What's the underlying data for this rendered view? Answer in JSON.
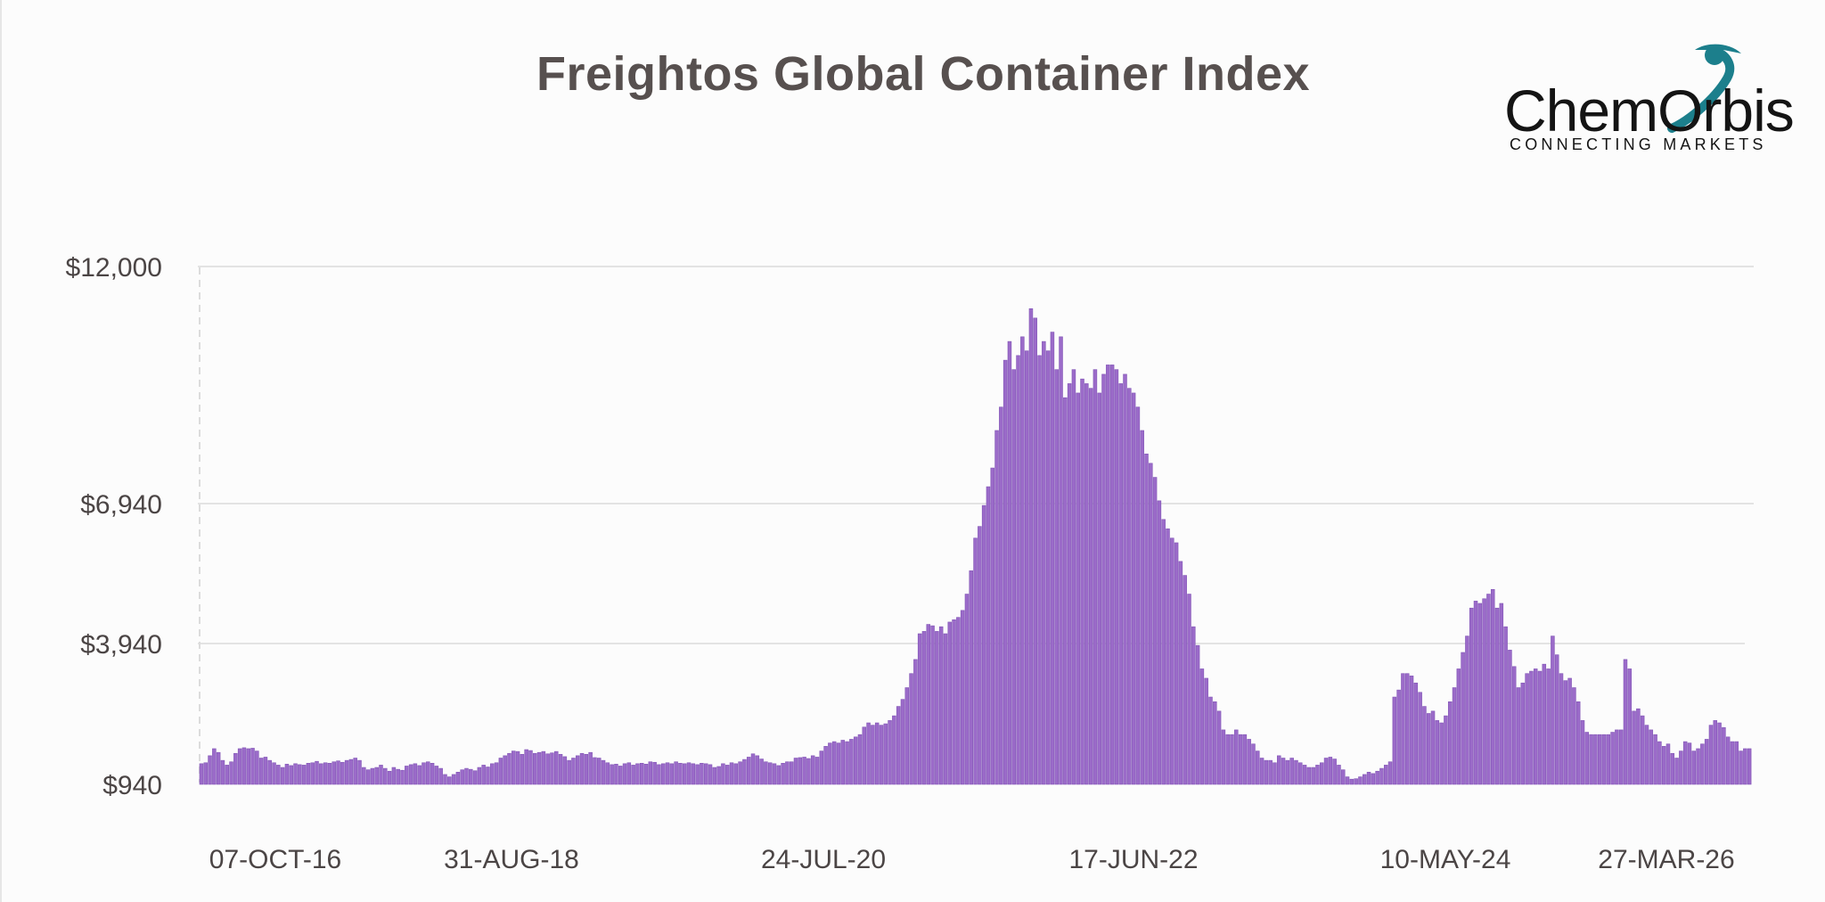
{
  "title": "Freightos Global Container Index",
  "logo": {
    "word": "ChemOrbis",
    "tagline": "CONNECTING MARKETS",
    "accent_color": "#1c7f8c",
    "text_color": "#141414"
  },
  "colors": {
    "bar": "#9b6bc9",
    "bar_edge": "#8256b6",
    "grid": "#e3e3e3",
    "text": "#4b4545"
  },
  "chart_data": {
    "type": "bar",
    "title": "Freightos Global Container Index",
    "xlabel": "",
    "ylabel": "",
    "x_start": "07-OCT-16",
    "x_end": "27-MAR-26",
    "x_tick_labels": [
      "07-OCT-16",
      "31-AUG-18",
      "24-JUL-20",
      "17-JUN-22",
      "10-MAY-24",
      "27-MAR-26"
    ],
    "y_tick_labels": [
      "$12,000",
      "$6,940",
      "$3,940",
      "$940"
    ],
    "y_ticks": [
      12000,
      6940,
      3940,
      940
    ],
    "ylim": [
      940,
      12000
    ],
    "grid": true,
    "legend": "none",
    "values": [
      1380,
      1400,
      1550,
      1700,
      1620,
      1450,
      1350,
      1420,
      1600,
      1700,
      1720,
      1700,
      1710,
      1650,
      1500,
      1520,
      1450,
      1400,
      1350,
      1300,
      1370,
      1340,
      1380,
      1360,
      1350,
      1390,
      1400,
      1430,
      1380,
      1400,
      1390,
      1420,
      1440,
      1410,
      1450,
      1470,
      1500,
      1450,
      1300,
      1250,
      1280,
      1300,
      1350,
      1280,
      1220,
      1300,
      1260,
      1240,
      1330,
      1360,
      1380,
      1340,
      1400,
      1420,
      1390,
      1330,
      1280,
      1150,
      1100,
      1150,
      1200,
      1250,
      1280,
      1260,
      1230,
      1300,
      1350,
      1310,
      1380,
      1400,
      1500,
      1550,
      1600,
      1650,
      1640,
      1580,
      1680,
      1660,
      1600,
      1620,
      1640,
      1590,
      1610,
      1640,
      1580,
      1530,
      1450,
      1500,
      1550,
      1600,
      1580,
      1620,
      1510,
      1500,
      1450,
      1400,
      1360,
      1370,
      1330,
      1380,
      1400,
      1350,
      1380,
      1390,
      1370,
      1420,
      1410,
      1360,
      1380,
      1400,
      1380,
      1420,
      1390,
      1380,
      1400,
      1380,
      1360,
      1390,
      1380,
      1360,
      1300,
      1320,
      1380,
      1350,
      1400,
      1380,
      1420,
      1470,
      1520,
      1590,
      1550,
      1480,
      1420,
      1400,
      1380,
      1340,
      1390,
      1420,
      1420,
      1500,
      1510,
      1520,
      1490,
      1550,
      1520,
      1650,
      1750,
      1820,
      1850,
      1820,
      1880,
      1850,
      1900,
      1950,
      2000,
      2160,
      2250,
      2200,
      2250,
      2200,
      2230,
      2300,
      2400,
      2600,
      2750,
      3000,
      3300,
      3600,
      4150,
      4200,
      4350,
      4320,
      4200,
      4300,
      4150,
      4400,
      4450,
      4500,
      4650,
      5000,
      5500,
      6200,
      6450,
      6900,
      7300,
      7700,
      8500,
      9000,
      10000,
      10400,
      9800,
      10100,
      10500,
      10200,
      11100,
      10900,
      10100,
      10400,
      10200,
      10600,
      9800,
      10500,
      9200,
      9500,
      9800,
      9300,
      9600,
      9500,
      9400,
      9800,
      9300,
      9700,
      9900,
      9900,
      9800,
      9500,
      9700,
      9400,
      9300,
      9000,
      8500,
      8000,
      7800,
      7500,
      7000,
      6600,
      6400,
      6200,
      6100,
      5700,
      5400,
      5000,
      4300,
      3900,
      3400,
      3200,
      2800,
      2700,
      2500,
      2100,
      2000,
      2000,
      2100,
      2000,
      2000,
      1900,
      1800,
      1650,
      1500,
      1450,
      1450,
      1400,
      1550,
      1500,
      1450,
      1500,
      1450,
      1400,
      1350,
      1300,
      1300,
      1350,
      1400,
      1500,
      1520,
      1480,
      1350,
      1250,
      1100,
      1050,
      1060,
      1100,
      1150,
      1200,
      1170,
      1220,
      1280,
      1350,
      1420,
      2800,
      2950,
      3300,
      3300,
      3250,
      3100,
      2900,
      2600,
      2450,
      2500,
      2300,
      2250,
      2400,
      2700,
      3000,
      3400,
      3750,
      4100,
      4700,
      4850,
      4800,
      4900,
      5000,
      5100,
      4700,
      4800,
      4300,
      3800,
      3450,
      3000,
      3100,
      3300,
      3350,
      3400,
      3350,
      3500,
      3400,
      4100,
      3700,
      3300,
      3150,
      3200,
      3000,
      2700,
      2300,
      2050,
      2000,
      2000,
      2000,
      2000,
      2000,
      2050,
      2100,
      2100,
      3600,
      3400,
      2500,
      2550,
      2400,
      2200,
      2100,
      2000,
      1850,
      1750,
      1800,
      1600,
      1500,
      1650,
      1850,
      1820,
      1650,
      1700,
      1800,
      1900,
      2200,
      2300,
      2250,
      2150,
      1950,
      1850,
      1850,
      1650,
      1700,
      1700
    ]
  }
}
